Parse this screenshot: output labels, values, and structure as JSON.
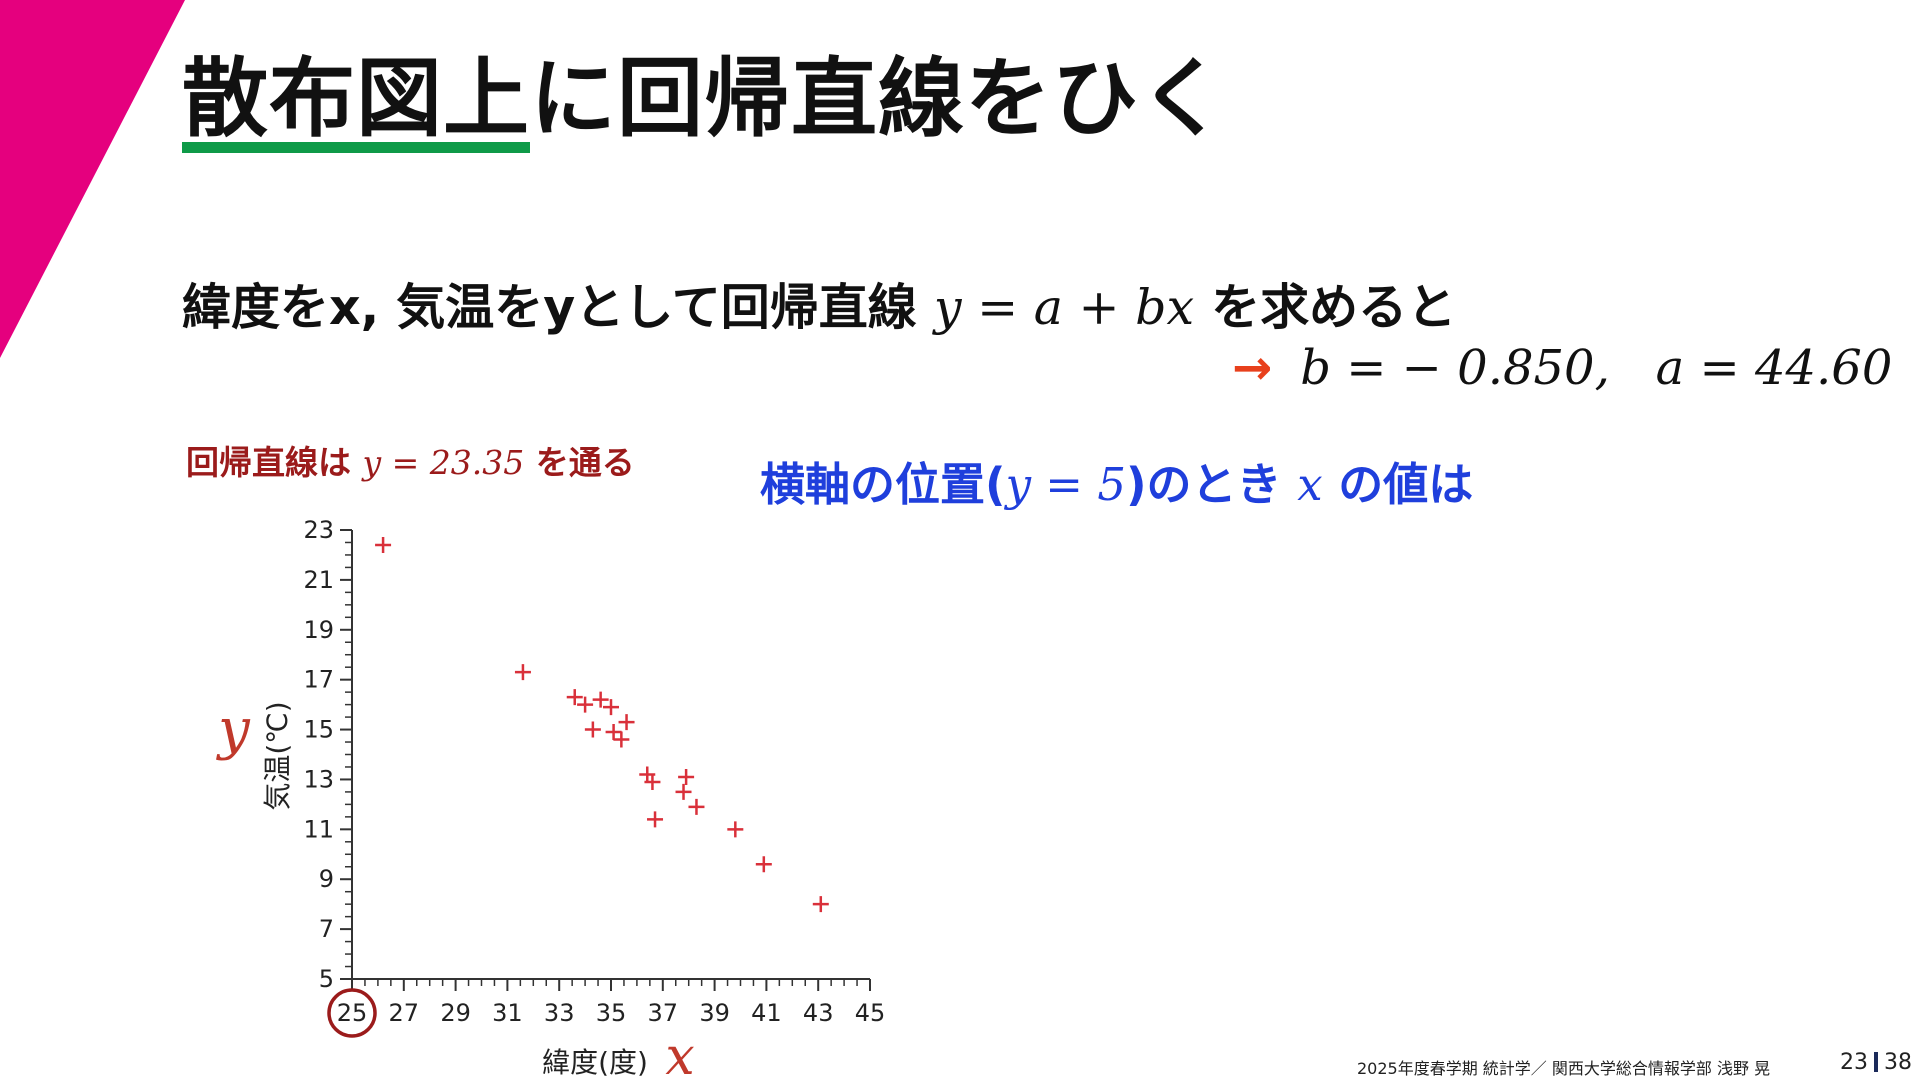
{
  "slide": {
    "title": "散布図上に回帰直線をひく",
    "colors": {
      "accent_magenta": "#e5007e",
      "underline_green": "#0e9a48",
      "arrow_red": "#e8401c",
      "dark_red": "#9b1b1b",
      "blue": "#1f3fdc",
      "point_red": "#d9303a"
    },
    "body_line": {
      "prefix": "緯度をx, 気温をyとして回帰直線 ",
      "equation": "y = a + bx",
      "suffix": " を求めると"
    },
    "result": {
      "arrow": "→",
      "b_text": "b = − 0.850,",
      "a_text": "a = 44.60"
    },
    "note_left": {
      "prefix": "回帰直線は ",
      "equation": "y = 23.35",
      "suffix": " を通る"
    },
    "note_right": {
      "prefix": "横軸の位置(",
      "equation": "y = 5",
      "middle": ")のとき ",
      "var": "x",
      "suffix": " の値は"
    },
    "footer": "2025年度春学期  統計学／  関西大学総合情報学部  浅野  晃",
    "page_current": "23",
    "page_total": "38"
  },
  "chart_data": {
    "type": "scatter",
    "xlabel": "緯度(度)",
    "ylabel": "気温(℃)",
    "x_var": "x",
    "y_var": "y",
    "xlim": [
      25,
      45
    ],
    "ylim": [
      5,
      23
    ],
    "xticks": [
      25,
      27,
      29,
      31,
      33,
      35,
      37,
      39,
      41,
      43,
      45
    ],
    "yticks": [
      5,
      7,
      9,
      11,
      13,
      15,
      17,
      19,
      21,
      23
    ],
    "highlight_x_tick": 25,
    "points": [
      {
        "x": 26.2,
        "y": 22.4
      },
      {
        "x": 31.6,
        "y": 17.3
      },
      {
        "x": 33.6,
        "y": 16.3
      },
      {
        "x": 34.0,
        "y": 16.0
      },
      {
        "x": 34.6,
        "y": 16.2
      },
      {
        "x": 35.0,
        "y": 15.9
      },
      {
        "x": 34.3,
        "y": 15.0
      },
      {
        "x": 35.1,
        "y": 14.9
      },
      {
        "x": 35.4,
        "y": 14.6
      },
      {
        "x": 35.6,
        "y": 15.3
      },
      {
        "x": 36.4,
        "y": 13.2
      },
      {
        "x": 36.6,
        "y": 12.9
      },
      {
        "x": 36.7,
        "y": 11.4
      },
      {
        "x": 37.9,
        "y": 13.1
      },
      {
        "x": 37.8,
        "y": 12.5
      },
      {
        "x": 38.3,
        "y": 11.9
      },
      {
        "x": 39.8,
        "y": 11.0
      },
      {
        "x": 40.9,
        "y": 9.6
      },
      {
        "x": 43.1,
        "y": 8.0
      }
    ]
  }
}
